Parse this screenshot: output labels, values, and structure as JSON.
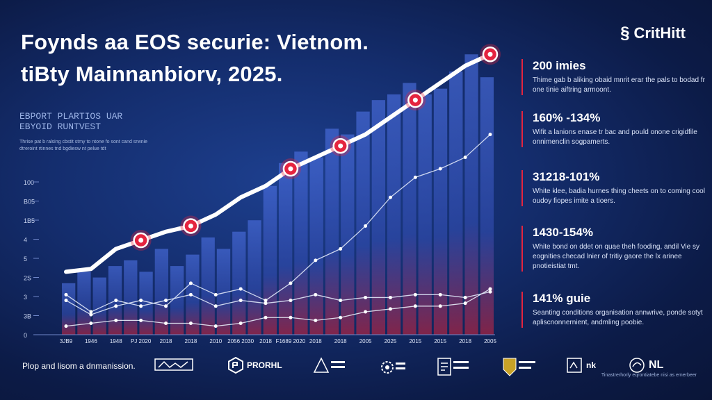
{
  "title_line1": "Foynds aa EOS securie: Vietnom.",
  "title_line2": "tiBty Mainnanbiorv, 2025.",
  "brand": {
    "name": "CritHitt",
    "icon": "swirl-logo-icon"
  },
  "subhead": {
    "line1": "EBPORT PLARTIOS UAR",
    "line2": "EBYOID RUNTVEST",
    "text": "Thrise pat b ralsing cbstit stmy to ntone fo sont cand srwnie dtreroint rtinnes tnd bgdiesw nt pelue tdt"
  },
  "stats": [
    {
      "value": "200 imies",
      "desc": "Thime gab b aliking obaid mnrit erar the pals to bodad fr one tinie aiftring armoont."
    },
    {
      "value": "160% -134%",
      "desc": "Wifit a lanions enase tr bac and pould onone crigidfile onnimenclin sogpamerts."
    },
    {
      "value": "31218-101%",
      "desc": "White klee, badia hurnes thing cheets on to coming cool oudoy fiopes imite a tioers."
    },
    {
      "value": "1430-154%",
      "desc": "White bond on ddet on quae theh fooding, andil Vie sy eognities checad lnier of tritiy gaore the lx arinee pnotieistiat tmt."
    },
    {
      "value": "141% guie",
      "desc": "Seanting conditions organisation annwrive, ponde sotyt apliscnonnernient, andmling poobie."
    }
  ],
  "footer": {
    "label": "Plop and lisom a dnmanission.",
    "logos": [
      {
        "name": "",
        "icon": "network-logo-icon"
      },
      {
        "name": "PRORHL",
        "icon": "hexagon-logo-icon"
      },
      {
        "name": "",
        "icon": "triangle-logo-icon"
      },
      {
        "name": "",
        "icon": "gear-logo-icon"
      },
      {
        "name": "",
        "icon": "document-logo-icon"
      },
      {
        "name": "",
        "icon": "crest-logo-icon"
      },
      {
        "name": "nk",
        "icon": "frame-logo-icon"
      },
      {
        "name": "NL",
        "icon": "bird-logo-icon"
      }
    ],
    "credit": "Tinastrerhorly eqrontiatebe nisi as emerbeer"
  },
  "chart_data": {
    "type": "line",
    "categories": [
      "3JB9",
      "1946",
      "1948",
      "PJ 2020",
      "2018",
      "2018",
      "2010",
      "2056 2030",
      "2018",
      "F1689 2020",
      "2018",
      "2018",
      "2005",
      "2025",
      "2015",
      "2015",
      "2018",
      "2005"
    ],
    "y_tick_labels": [
      "100",
      "B05",
      "1B5",
      "4",
      "5",
      "2S",
      "3",
      "3B",
      "0"
    ],
    "ylim": [
      0,
      100
    ],
    "bars": [
      18,
      22,
      20,
      24,
      26,
      22,
      30,
      24,
      28,
      34,
      30,
      36,
      40,
      52,
      60,
      64,
      62,
      72,
      70,
      78,
      82,
      84,
      88,
      84,
      86,
      92,
      98,
      90
    ],
    "series": [
      {
        "values": [
          22,
          23,
          30,
          33,
          36,
          38,
          42,
          48,
          52,
          58,
          62,
          66,
          70,
          76,
          82,
          88,
          94,
          98
        ],
        "color": "#ffffff",
        "highlights": [
          3,
          5,
          9,
          11,
          14,
          17
        ]
      },
      {
        "values": [
          12,
          7,
          10,
          12,
          10,
          18,
          14,
          16,
          12,
          18,
          26,
          30,
          38,
          48,
          55,
          58,
          62,
          70
        ],
        "color": "#dfe7f8"
      },
      {
        "values": [
          14,
          8,
          12,
          10,
          12,
          14,
          10,
          12,
          11,
          12,
          14,
          12,
          13,
          13,
          14,
          14,
          13,
          15
        ],
        "color": "#dfe7f8"
      },
      {
        "values": [
          3,
          4,
          5,
          5,
          4,
          4,
          3,
          4,
          6,
          6,
          5,
          6,
          8,
          9,
          10,
          10,
          11,
          16
        ],
        "color": "#e8eef9"
      }
    ],
    "colors": {
      "accent": "#e5243f",
      "bar": "#3a58c4",
      "line": "#ffffff"
    }
  }
}
